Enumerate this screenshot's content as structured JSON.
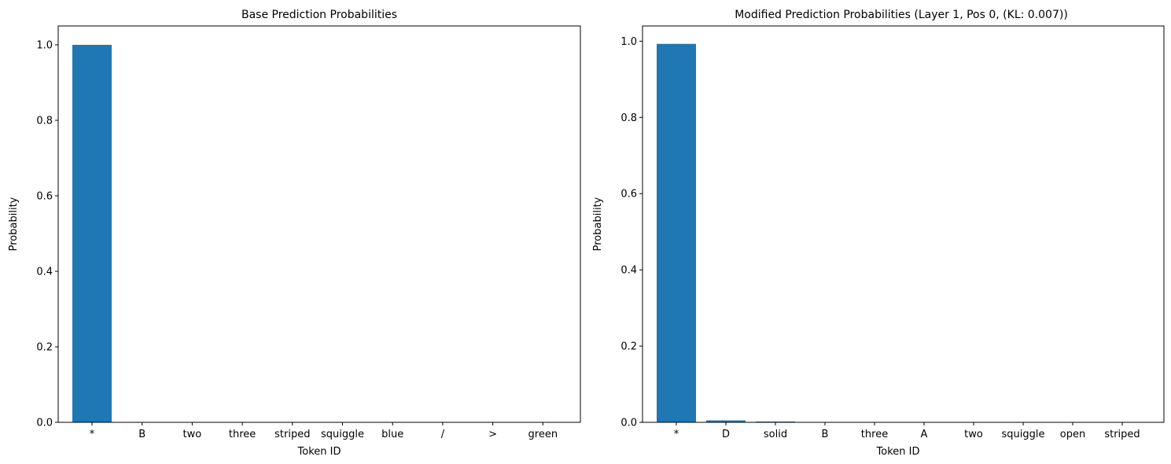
{
  "chart_data": [
    {
      "type": "bar",
      "title": "Base Prediction Probabilities",
      "xlabel": "Token ID",
      "ylabel": "Probability",
      "categories": [
        "*",
        "B",
        "two",
        "three",
        "striped",
        "squiggle",
        "blue",
        "/",
        ">",
        "green"
      ],
      "values": [
        1.0,
        0.0,
        0.0,
        0.0,
        0.0,
        0.0,
        0.0,
        0.0,
        0.0,
        0.0
      ],
      "ylim": [
        0,
        1.05
      ],
      "yticks": [
        "0.0",
        "0.2",
        "0.4",
        "0.6",
        "0.8",
        "1.0"
      ],
      "bar_color": "#1f77b4",
      "grid": false,
      "legend": "none"
    },
    {
      "type": "bar",
      "title": "Modified Prediction Probabilities (Layer 1, Pos 0, (KL: 0.007))",
      "xlabel": "Token ID",
      "ylabel": "Probability",
      "categories": [
        "*",
        "D",
        "solid",
        "B",
        "three",
        "A",
        "two",
        "squiggle",
        "open",
        "striped"
      ],
      "values": [
        0.993,
        0.005,
        0.002,
        0.0,
        0.0,
        0.0,
        0.0,
        0.0,
        0.0,
        0.0
      ],
      "ylim": [
        0,
        1.04
      ],
      "yticks": [
        "0.0",
        "0.2",
        "0.4",
        "0.6",
        "0.8",
        "1.0"
      ],
      "bar_color": "#1f77b4",
      "grid": false,
      "legend": "none"
    }
  ]
}
